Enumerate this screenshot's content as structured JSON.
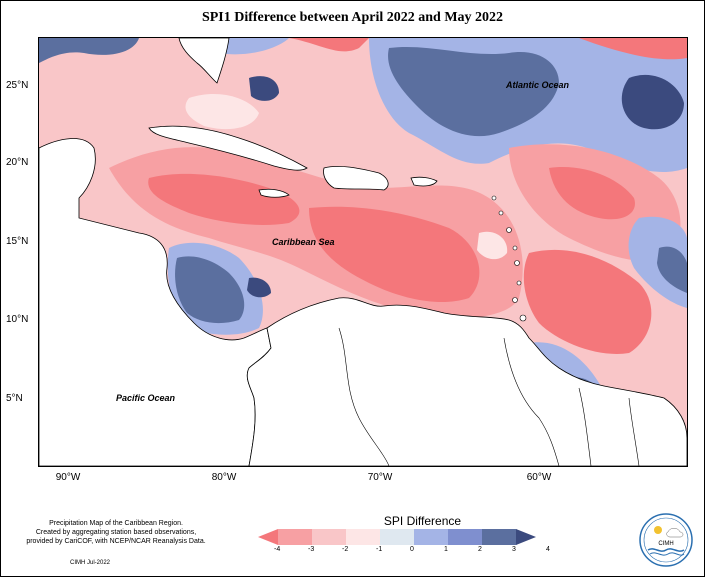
{
  "title": "SPI1 Difference between April 2022 and May 2022",
  "axes": {
    "lat_labels": [
      "25°N",
      "20°N",
      "15°N",
      "10°N",
      "5°N"
    ],
    "lon_labels": [
      "90°W",
      "80°W",
      "70°W",
      "60°W"
    ]
  },
  "map_labels": {
    "atlantic": "Atlantic Ocean",
    "caribbean": "Caribbean Sea",
    "pacific": "Pacific Ocean"
  },
  "legend": {
    "title": "SPI Difference",
    "ticks": [
      "-4",
      "-3",
      "-2",
      "-1",
      "0",
      "1",
      "2",
      "3",
      "4"
    ],
    "colors": [
      "#f4777b",
      "#f7a0a3",
      "#f9c6c8",
      "#fde6e6",
      "#dfe8f0",
      "#a4b4e6",
      "#7f8fcf",
      "#5b6f9f",
      "#3b4a7e"
    ]
  },
  "credits": {
    "line1": "Precipitation Map of the Caribbean Region.",
    "line2": "Created by aggregating station based observations,",
    "line3": "provided by CariCOF, with NCEP/NCAR Reanalysis Data.",
    "date": "CIMH Jul-2022"
  },
  "logo": {
    "text": "CIMH"
  },
  "colors": {
    "strong_dry": "#f4777b",
    "dry": "#f7a0a3",
    "weak_dry": "#f9c6c8",
    "near_normal": "#fde6e6",
    "weak_wet": "#dfe8f0",
    "wet": "#a4b4e6",
    "very_wet": "#5b6f9f",
    "extreme_wet": "#3b4a7e"
  }
}
